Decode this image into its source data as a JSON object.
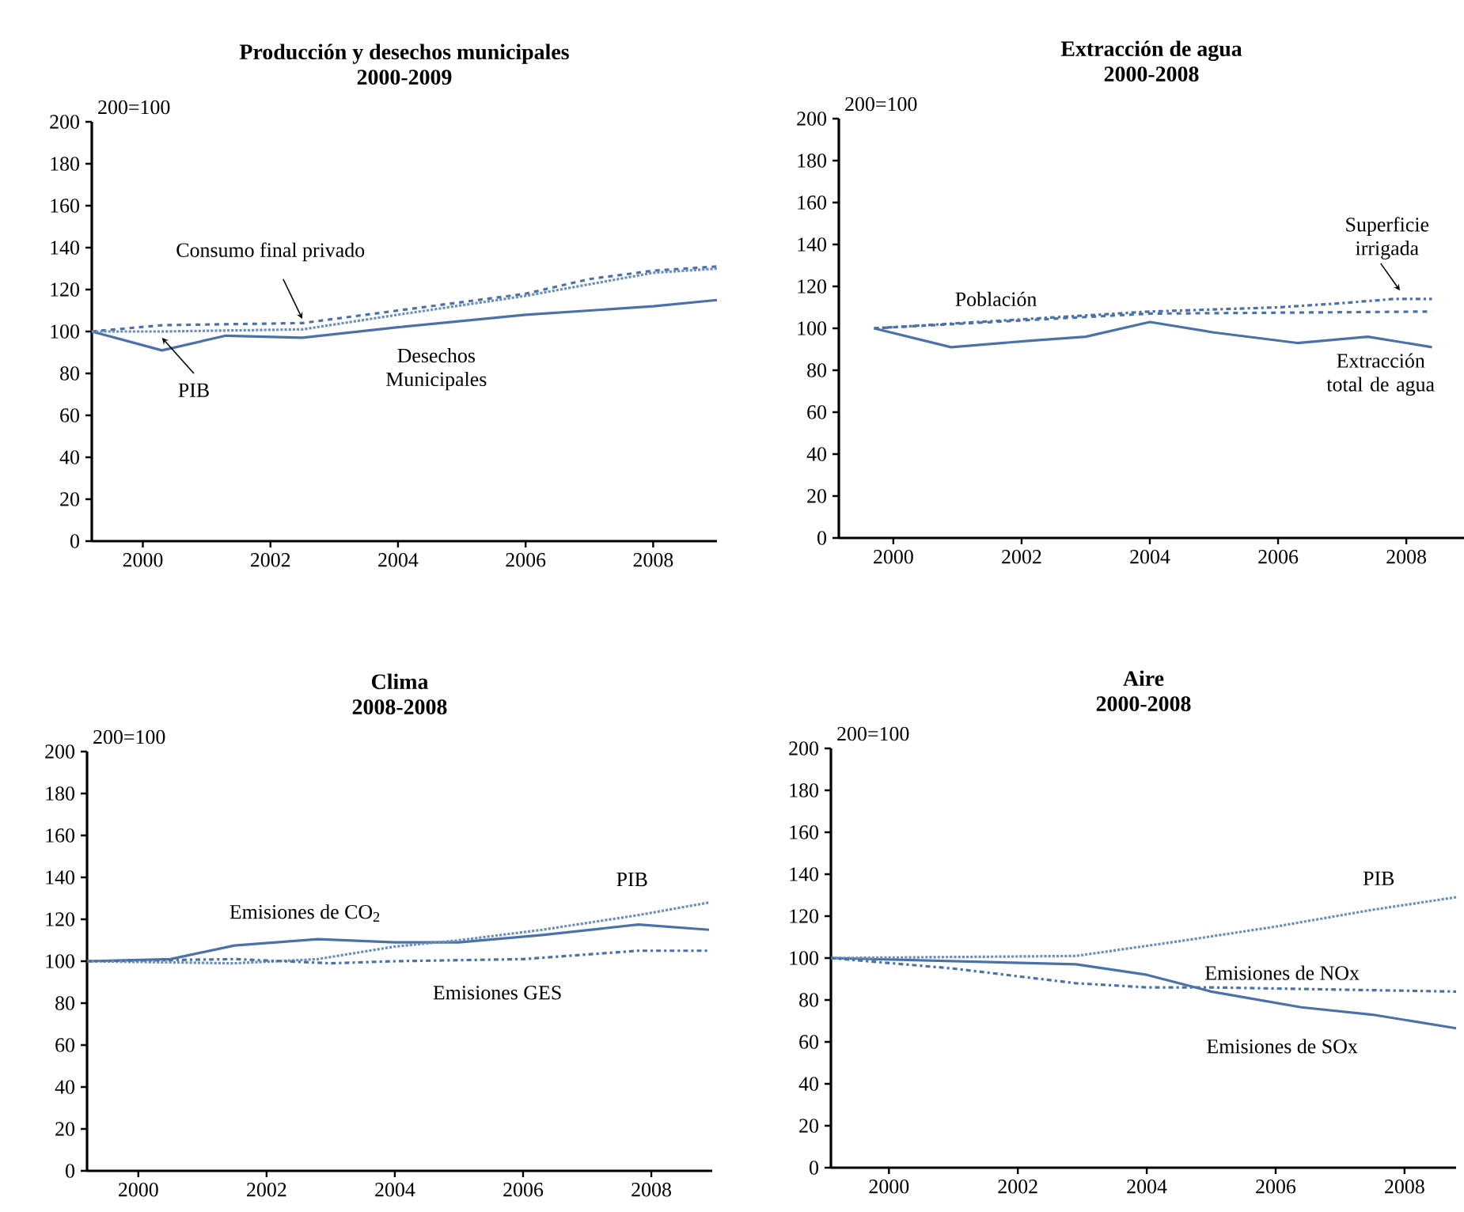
{
  "chart_data": [
    {
      "type": "line",
      "title": "Producción y desechos municipales",
      "subtitle": "2000-2009",
      "ylabel": "200=100",
      "xlim": [
        1999.2,
        2009.0
      ],
      "ylim": [
        0,
        200
      ],
      "xticks": [
        2000,
        2002,
        2004,
        2006,
        2008
      ],
      "yticks": [
        0,
        20,
        40,
        60,
        80,
        100,
        120,
        140,
        160,
        180,
        200
      ],
      "series": [
        {
          "name": "Desechos Municipales",
          "color": "#4a72a8",
          "line_style": "solid",
          "x": [
            1999.2,
            2000.3,
            2001.3,
            2002.5,
            2004.0,
            2006.0,
            2008.0,
            2009.0
          ],
          "values": [
            100,
            91,
            98,
            97,
            102,
            108,
            112,
            115
          ]
        },
        {
          "name": "Consumo final privado",
          "color": "#4a72a8",
          "line_style": "dashed",
          "x": [
            1999.2,
            2000.3,
            2002.5,
            2004.0,
            2006.0,
            2007.0,
            2008.0,
            2009.0
          ],
          "values": [
            100,
            103,
            104,
            110,
            118,
            125,
            129,
            131
          ]
        },
        {
          "name": "PIB",
          "color": "#6a8fc0",
          "line_style": "dotted",
          "x": [
            1999.2,
            2000.3,
            2002.5,
            2004.0,
            2006.0,
            2008.0,
            2009.0
          ],
          "values": [
            100,
            100,
            101,
            108,
            117,
            128,
            130
          ]
        }
      ]
    },
    {
      "type": "line",
      "title": "Extracción de agua",
      "subtitle": "2000-2008",
      "ylabel": "200=100",
      "xlim": [
        1999.15,
        2008.9
      ],
      "ylim": [
        0,
        200
      ],
      "xticks": [
        2000,
        2002,
        2004,
        2006,
        2008
      ],
      "yticks": [
        0,
        20,
        40,
        60,
        80,
        100,
        120,
        140,
        160,
        180,
        200
      ],
      "series": [
        {
          "name": "Extracción total de agua",
          "color": "#4a72a8",
          "line_style": "solid",
          "x": [
            1999.7,
            2000.9,
            2002.1,
            2003.0,
            2004.0,
            2005.0,
            2006.3,
            2007.4,
            2008.4
          ],
          "values": [
            100,
            91,
            94,
            96,
            103,
            98,
            93,
            96,
            91
          ]
        },
        {
          "name": "Población",
          "color": "#4a72a8",
          "line_style": "dashed",
          "x": [
            1999.7,
            2004.0,
            2008.4
          ],
          "values": [
            100,
            107,
            108
          ]
        },
        {
          "name": "Superficie irrigada",
          "color": "#4a72a8",
          "line_style": "dashdot",
          "x": [
            1999.7,
            2004.0,
            2005.0,
            2006.0,
            2007.0,
            2007.8,
            2008.4
          ],
          "values": [
            100,
            108,
            109,
            110,
            112,
            114,
            114
          ]
        }
      ]
    },
    {
      "type": "line",
      "title": "Clima",
      "subtitle": "2008-2008",
      "ylabel": "200=100",
      "xlim": [
        1999.2,
        2008.95
      ],
      "ylim": [
        0,
        200
      ],
      "xticks": [
        2000,
        2002,
        2004,
        2006,
        2008
      ],
      "yticks": [
        0,
        20,
        40,
        60,
        80,
        100,
        120,
        140,
        160,
        180,
        200
      ],
      "series": [
        {
          "name": "Emisiones de CO$_{2}$",
          "color": "#4a72a8",
          "line_style": "solid",
          "x": [
            1999.2,
            2000.5,
            2001.5,
            2002.8,
            2004.0,
            2005.0,
            2006.3,
            2007.8,
            2008.9
          ],
          "values": [
            100,
            101,
            107.5,
            110.5,
            109,
            109,
            112.5,
            117.5,
            115
          ]
        },
        {
          "name": "PIB",
          "color": "#6a8fc0",
          "line_style": "dotted",
          "x": [
            1999.2,
            2001.5,
            2002.8,
            2004.0,
            2005.0,
            2006.3,
            2007.8,
            2008.9
          ],
          "values": [
            100,
            99,
            101,
            107,
            110,
            115,
            122,
            128
          ]
        },
        {
          "name": "Emisiones GES",
          "color": "#4a72a8",
          "line_style": "dashdot",
          "x": [
            1999.2,
            2001.5,
            2003.0,
            2004.0,
            2006.0,
            2007.8,
            2008.9
          ],
          "values": [
            100,
            101,
            99,
            100,
            101,
            105,
            105
          ]
        }
      ]
    },
    {
      "type": "line",
      "title": "Aire",
      "subtitle": "2000-2008",
      "ylabel": "200=100",
      "xlim": [
        1999.1,
        2008.8
      ],
      "ylim": [
        0,
        200
      ],
      "xticks": [
        2000,
        2002,
        2004,
        2006,
        2008
      ],
      "yticks": [
        0,
        20,
        40,
        60,
        80,
        100,
        120,
        140,
        160,
        180,
        200
      ],
      "series": [
        {
          "name": "Emisiones de SOx",
          "color": "#4a72a8",
          "line_style": "solid",
          "x": [
            1999.1,
            2002.9,
            2004.0,
            2005.0,
            2006.4,
            2007.5,
            2008.8
          ],
          "values": [
            100,
            97,
            92,
            84,
            76.5,
            73,
            66.5
          ]
        },
        {
          "name": "PIB",
          "color": "#6a8fc0",
          "line_style": "dotted",
          "x": [
            1999.1,
            2002.9,
            2004.5,
            2006.0,
            2007.5,
            2008.8
          ],
          "values": [
            100,
            101,
            108,
            115,
            123,
            129
          ]
        },
        {
          "name": "Emisiones de NOx",
          "color": "#4a72a8",
          "line_style": "dashdot",
          "x": [
            1999.1,
            2001.0,
            2002.9,
            2004.0,
            2005.0,
            2008.8
          ],
          "values": [
            100,
            95,
            88,
            86,
            86,
            84
          ]
        }
      ]
    }
  ]
}
